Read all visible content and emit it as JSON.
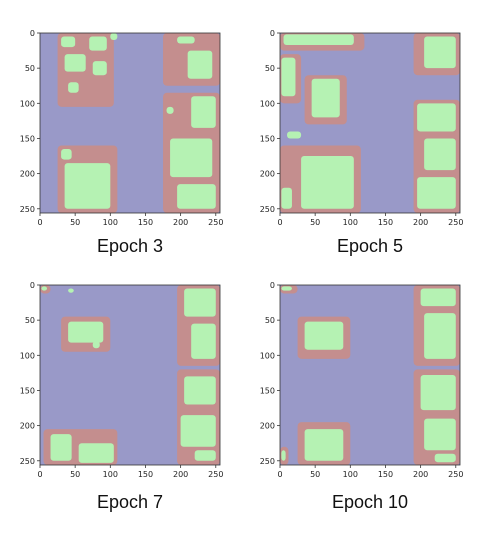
{
  "colors": {
    "background_class": "#9999c8",
    "foreground_class": "#b5f2b3",
    "boundary_class": "#c48e8e",
    "axis": "#333333"
  },
  "axes": {
    "x_ticks": [
      0,
      50,
      100,
      150,
      200,
      250
    ],
    "y_ticks": [
      0,
      50,
      100,
      150,
      200,
      250
    ],
    "range": [
      0,
      256
    ]
  },
  "panels": [
    {
      "caption": "Epoch 3",
      "regions": [
        {
          "cls": "boundary",
          "x": 25,
          "y": 0,
          "w": 80,
          "h": 105
        },
        {
          "cls": "foreground",
          "x": 30,
          "y": 5,
          "w": 20,
          "h": 15
        },
        {
          "cls": "foreground",
          "x": 70,
          "y": 5,
          "w": 25,
          "h": 20
        },
        {
          "cls": "foreground",
          "x": 35,
          "y": 30,
          "w": 30,
          "h": 25
        },
        {
          "cls": "foreground",
          "x": 75,
          "y": 40,
          "w": 20,
          "h": 20
        },
        {
          "cls": "foreground",
          "x": 40,
          "y": 70,
          "w": 15,
          "h": 15
        },
        {
          "cls": "foreground",
          "x": 100,
          "y": 0,
          "w": 10,
          "h": 10
        },
        {
          "cls": "boundary",
          "x": 25,
          "y": 160,
          "w": 85,
          "h": 96
        },
        {
          "cls": "foreground",
          "x": 35,
          "y": 185,
          "w": 65,
          "h": 65
        },
        {
          "cls": "foreground",
          "x": 30,
          "y": 165,
          "w": 15,
          "h": 15
        },
        {
          "cls": "boundary",
          "x": 175,
          "y": 0,
          "w": 81,
          "h": 75
        },
        {
          "cls": "foreground",
          "x": 195,
          "y": 5,
          "w": 25,
          "h": 10
        },
        {
          "cls": "foreground",
          "x": 210,
          "y": 25,
          "w": 35,
          "h": 40
        },
        {
          "cls": "boundary",
          "x": 175,
          "y": 85,
          "w": 81,
          "h": 171
        },
        {
          "cls": "foreground",
          "x": 215,
          "y": 90,
          "w": 35,
          "h": 45
        },
        {
          "cls": "foreground",
          "x": 185,
          "y": 150,
          "w": 60,
          "h": 55
        },
        {
          "cls": "foreground",
          "x": 195,
          "y": 215,
          "w": 55,
          "h": 35
        },
        {
          "cls": "foreground",
          "x": 180,
          "y": 105,
          "w": 10,
          "h": 10
        }
      ]
    },
    {
      "caption": "Epoch 5",
      "regions": [
        {
          "cls": "boundary",
          "x": 0,
          "y": 0,
          "w": 120,
          "h": 25
        },
        {
          "cls": "foreground",
          "x": 5,
          "y": 2,
          "w": 100,
          "h": 15
        },
        {
          "cls": "boundary",
          "x": 0,
          "y": 30,
          "w": 30,
          "h": 70
        },
        {
          "cls": "foreground",
          "x": 2,
          "y": 35,
          "w": 20,
          "h": 55
        },
        {
          "cls": "boundary",
          "x": 35,
          "y": 60,
          "w": 60,
          "h": 70
        },
        {
          "cls": "foreground",
          "x": 45,
          "y": 65,
          "w": 40,
          "h": 55
        },
        {
          "cls": "foreground",
          "x": 10,
          "y": 140,
          "w": 20,
          "h": 10
        },
        {
          "cls": "boundary",
          "x": 0,
          "y": 160,
          "w": 115,
          "h": 96
        },
        {
          "cls": "foreground",
          "x": 30,
          "y": 175,
          "w": 75,
          "h": 75
        },
        {
          "cls": "foreground",
          "x": 2,
          "y": 220,
          "w": 15,
          "h": 30
        },
        {
          "cls": "boundary",
          "x": 190,
          "y": 0,
          "w": 66,
          "h": 60
        },
        {
          "cls": "foreground",
          "x": 205,
          "y": 5,
          "w": 45,
          "h": 45
        },
        {
          "cls": "boundary",
          "x": 190,
          "y": 95,
          "w": 66,
          "h": 161
        },
        {
          "cls": "foreground",
          "x": 195,
          "y": 100,
          "w": 55,
          "h": 40
        },
        {
          "cls": "foreground",
          "x": 205,
          "y": 150,
          "w": 45,
          "h": 45
        },
        {
          "cls": "foreground",
          "x": 195,
          "y": 205,
          "w": 55,
          "h": 45
        }
      ]
    },
    {
      "caption": "Epoch 7",
      "regions": [
        {
          "cls": "boundary",
          "x": 0,
          "y": 0,
          "w": 15,
          "h": 12
        },
        {
          "cls": "foreground",
          "x": 2,
          "y": 2,
          "w": 8,
          "h": 6
        },
        {
          "cls": "foreground",
          "x": 40,
          "y": 5,
          "w": 8,
          "h": 6
        },
        {
          "cls": "boundary",
          "x": 30,
          "y": 45,
          "w": 70,
          "h": 50
        },
        {
          "cls": "foreground",
          "x": 40,
          "y": 52,
          "w": 50,
          "h": 30
        },
        {
          "cls": "foreground",
          "x": 75,
          "y": 80,
          "w": 10,
          "h": 10
        },
        {
          "cls": "boundary",
          "x": 5,
          "y": 205,
          "w": 105,
          "h": 51
        },
        {
          "cls": "foreground",
          "x": 15,
          "y": 212,
          "w": 30,
          "h": 38
        },
        {
          "cls": "foreground",
          "x": 55,
          "y": 225,
          "w": 50,
          "h": 28
        },
        {
          "cls": "boundary",
          "x": 195,
          "y": 0,
          "w": 61,
          "h": 115
        },
        {
          "cls": "foreground",
          "x": 205,
          "y": 5,
          "w": 45,
          "h": 40
        },
        {
          "cls": "foreground",
          "x": 215,
          "y": 55,
          "w": 35,
          "h": 50
        },
        {
          "cls": "boundary",
          "x": 195,
          "y": 120,
          "w": 61,
          "h": 136
        },
        {
          "cls": "foreground",
          "x": 205,
          "y": 130,
          "w": 45,
          "h": 40
        },
        {
          "cls": "foreground",
          "x": 200,
          "y": 185,
          "w": 50,
          "h": 45
        },
        {
          "cls": "foreground",
          "x": 220,
          "y": 235,
          "w": 30,
          "h": 15
        }
      ]
    },
    {
      "caption": "Epoch 10",
      "regions": [
        {
          "cls": "boundary",
          "x": 0,
          "y": 0,
          "w": 25,
          "h": 12
        },
        {
          "cls": "foreground",
          "x": 2,
          "y": 2,
          "w": 15,
          "h": 6
        },
        {
          "cls": "boundary",
          "x": 25,
          "y": 45,
          "w": 75,
          "h": 60
        },
        {
          "cls": "foreground",
          "x": 35,
          "y": 52,
          "w": 55,
          "h": 40
        },
        {
          "cls": "boundary",
          "x": 0,
          "y": 230,
          "w": 12,
          "h": 26
        },
        {
          "cls": "foreground",
          "x": 2,
          "y": 235,
          "w": 6,
          "h": 15
        },
        {
          "cls": "boundary",
          "x": 25,
          "y": 195,
          "w": 75,
          "h": 61
        },
        {
          "cls": "foreground",
          "x": 35,
          "y": 205,
          "w": 55,
          "h": 45
        },
        {
          "cls": "boundary",
          "x": 190,
          "y": 0,
          "w": 66,
          "h": 115
        },
        {
          "cls": "foreground",
          "x": 200,
          "y": 5,
          "w": 50,
          "h": 25
        },
        {
          "cls": "foreground",
          "x": 205,
          "y": 40,
          "w": 45,
          "h": 65
        },
        {
          "cls": "boundary",
          "x": 190,
          "y": 120,
          "w": 66,
          "h": 136
        },
        {
          "cls": "foreground",
          "x": 200,
          "y": 128,
          "w": 50,
          "h": 50
        },
        {
          "cls": "foreground",
          "x": 205,
          "y": 190,
          "w": 45,
          "h": 45
        },
        {
          "cls": "foreground",
          "x": 220,
          "y": 240,
          "w": 30,
          "h": 12
        }
      ]
    }
  ]
}
